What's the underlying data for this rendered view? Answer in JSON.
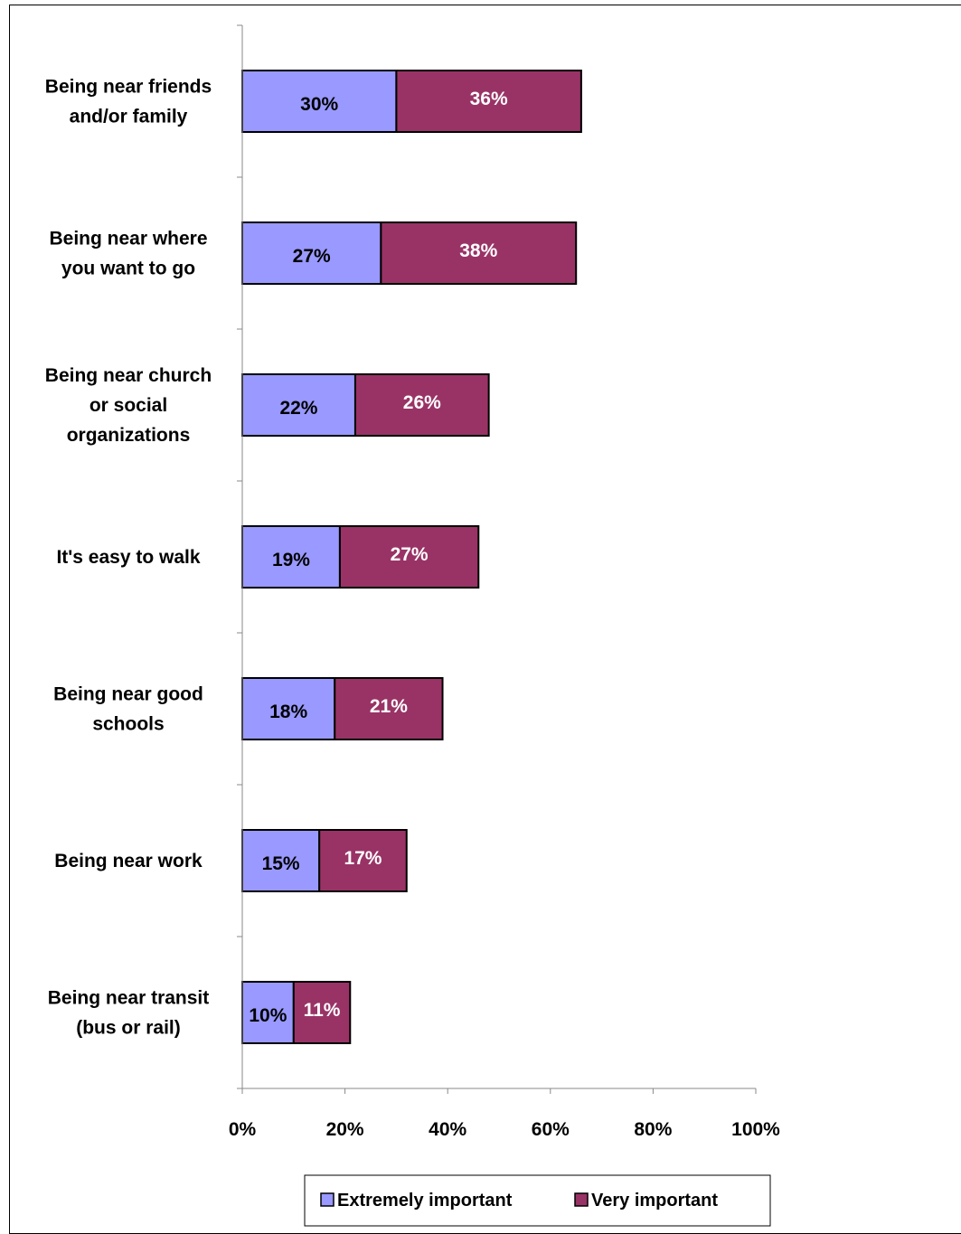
{
  "chart_data": {
    "type": "bar",
    "orientation": "horizontal",
    "stacked": true,
    "categories": [
      [
        "Being near friends",
        "and/or family"
      ],
      [
        "Being near where",
        "you want to go"
      ],
      [
        "Being near church",
        "or social",
        "organizations"
      ],
      [
        "It's easy to walk"
      ],
      [
        "Being near good",
        "schools"
      ],
      [
        "Being near work"
      ],
      [
        "Being near transit",
        "(bus or rail)"
      ]
    ],
    "series": [
      {
        "name": "Extremely important",
        "color": "#9999ff",
        "values": [
          30,
          27,
          22,
          19,
          18,
          15,
          10
        ],
        "labels": [
          "30%",
          "27%",
          "22%",
          "19%",
          "18%",
          "15%",
          "10%"
        ]
      },
      {
        "name": "Very important",
        "color": "#993366",
        "values": [
          36,
          38,
          26,
          27,
          21,
          17,
          11
        ],
        "labels": [
          "36%",
          "38%",
          "26%",
          "27%",
          "21%",
          "17%",
          "11%"
        ]
      }
    ],
    "xlim": [
      0,
      100
    ],
    "xticks": [
      "0%",
      "20%",
      "40%",
      "60%",
      "80%",
      "100%"
    ],
    "legend_position": "bottom",
    "grid": false
  }
}
